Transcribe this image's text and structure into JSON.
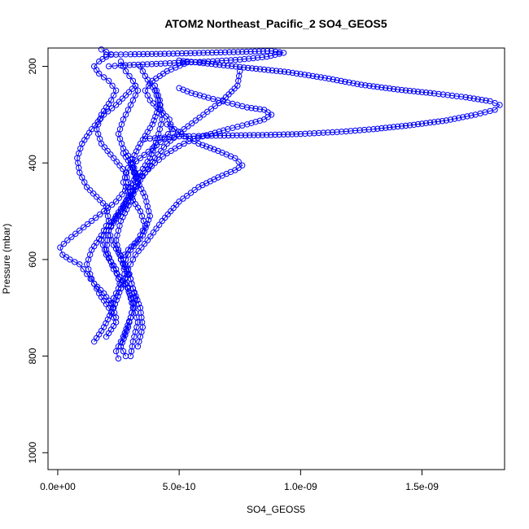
{
  "chart_data": {
    "type": "line",
    "title": "ATOM2 Northeast_Pacific_2 SO4_GEOS5",
    "xlabel": "SO4_GEOS5",
    "ylabel": "Pressure (mbar)",
    "xlim": [
      -4e-11,
      1.84e-09
    ],
    "ylim": [
      1035,
      162
    ],
    "y_reversed": true,
    "x_ticks": [
      0,
      5e-10,
      1e-09,
      1.5e-09
    ],
    "x_tick_labels": [
      "0.0e+00",
      "5.0e-10",
      "1.0e-09",
      "1.5e-09"
    ],
    "y_ticks": [
      200,
      400,
      600,
      800,
      1000
    ],
    "y_tick_labels": [
      "200",
      "400",
      "600",
      "800",
      "1000"
    ],
    "marker": "open-circle",
    "line_style": "line with circle markers",
    "series_color": "#0000ff",
    "grid": false,
    "legend": "none",
    "series": [
      {
        "x": [
          2.8e-10,
          2.6e-10,
          2.9e-10,
          3.1e-10,
          2.9e-10,
          2.3e-10,
          2e-10,
          2.1e-10,
          2.6e-10,
          3e-10,
          2.8e-10,
          2.3e-10,
          1.8e-10,
          1.6e-10,
          1.8e-10,
          2.2e-10,
          2.4e-10,
          2.1e-10,
          1.7e-10,
          1.5e-10,
          1.7e-10,
          2e-10,
          2.2e-10,
          2e-10,
          1.8e-10
        ],
        "y": [
          800,
          780,
          740,
          700,
          660,
          620,
          580,
          540,
          500,
          460,
          420,
          390,
          360,
          330,
          300,
          270,
          250,
          230,
          215,
          200,
          190,
          180,
          175,
          170,
          165
        ]
      },
      {
        "x": [
          2.5e-10,
          2.4e-10,
          2.7e-10,
          3e-10,
          3.2e-10,
          3e-10,
          2.6e-10,
          2.4e-10,
          2.6e-10,
          3e-10,
          3.3e-10,
          3.1e-10,
          2.7e-10,
          2.5e-10,
          2.7e-10,
          3e-10,
          3.3e-10,
          3.1e-10,
          2.8e-10,
          2.6e-10
        ],
        "y": [
          805,
          790,
          760,
          720,
          680,
          640,
          600,
          560,
          520,
          480,
          440,
          400,
          370,
          340,
          310,
          280,
          250,
          230,
          210,
          190
        ]
      },
      {
        "x": [
          3e-10,
          3.1e-10,
          3.3e-10,
          3.1e-10,
          2.8e-10,
          2.7e-10,
          3e-10,
          3.5e-10,
          3.8e-10,
          3.6e-10,
          3.2e-10,
          3e-10,
          3.4e-10,
          3.9e-10,
          4.2e-10,
          4e-10,
          3.6e-10,
          3.4e-10
        ],
        "y": [
          800,
          770,
          730,
          690,
          650,
          610,
          580,
          550,
          510,
          470,
          430,
          400,
          360,
          320,
          280,
          250,
          220,
          200
        ]
      },
      {
        "x": [
          2.3e-10,
          1.9e-10,
          1.5e-10,
          1.2e-10,
          9e-11,
          5e-11,
          2e-11,
          1e-11,
          4e-11,
          9e-11,
          1.4e-10,
          1.9e-10,
          2.4e-10,
          2.9e-10,
          3.4e-10,
          3.8e-10,
          4.1e-10,
          4.3e-10,
          4.2e-10,
          4e-10
        ],
        "y": [
          700,
          670,
          650,
          630,
          610,
          600,
          590,
          575,
          560,
          540,
          520,
          500,
          480,
          450,
          420,
          390,
          350,
          310,
          270,
          240
        ]
      },
      {
        "x": [
          3.3e-10,
          3.5e-10,
          3.4e-10,
          3.1e-10,
          2.9e-10,
          3.2e-10,
          3.7e-10,
          4.3e-10,
          5e-10,
          5.8e-10,
          6.6e-10,
          7.3e-10,
          7.6e-10,
          7.3e-10,
          6.6e-10,
          5.8e-10,
          5.1e-10,
          4.5e-10
        ],
        "y": [
          780,
          740,
          700,
          660,
          620,
          590,
          560,
          520,
          480,
          450,
          430,
          415,
          405,
          390,
          375,
          360,
          340,
          320
        ]
      },
      {
        "x": [
          3.2e-10,
          3.6e-10,
          4e-10,
          4.5e-10,
          5e-10,
          5.6e-10,
          6.3e-10,
          7e-10,
          7.8e-10,
          8.5e-10,
          8.8e-10,
          8.5e-10,
          7.8e-10,
          7e-10,
          6.2e-10,
          5.5e-10,
          5e-10
        ],
        "y": [
          440,
          420,
          400,
          380,
          365,
          350,
          340,
          330,
          320,
          310,
          300,
          290,
          285,
          275,
          265,
          255,
          245
        ]
      },
      {
        "x": [
          3.6e-10,
          4.2e-10,
          5e-10,
          6e-10,
          7.2e-10,
          8.6e-10,
          1e-09,
          1.15e-09,
          1.3e-09,
          1.45e-09,
          1.6e-09,
          1.72e-09,
          1.8e-09,
          1.82e-09,
          1.78e-09,
          1.68e-09,
          1.55e-09,
          1.4e-09,
          1.25e-09,
          1.1e-09,
          9.5e-10,
          8e-10,
          6.5e-10,
          5e-10
        ],
        "y": [
          350,
          348,
          345,
          344,
          343,
          342,
          340,
          336,
          330,
          322,
          312,
          300,
          290,
          280,
          272,
          264,
          256,
          248,
          238,
          224,
          212,
          204,
          196,
          188
        ]
      },
      {
        "x": [
          2.1e-10,
          2.6e-10,
          3.5e-10,
          4.8e-10,
          6.2e-10,
          7.5e-10,
          8.6e-10,
          9.3e-10,
          8.8e-10,
          7.6e-10,
          6e-10,
          4.4e-10,
          3e-10,
          2e-10
        ],
        "y": [
          200,
          198,
          196,
          193,
          190,
          186,
          180,
          172,
          168,
          170,
          172,
          174,
          175,
          176
        ]
      },
      {
        "x": [
          2e-10,
          2.4e-10,
          2.1e-10,
          1.7e-10,
          1.4e-10,
          1.2e-10,
          1.4e-10,
          1.8e-10,
          2.1e-10,
          2e-10,
          1.6e-10,
          1.2e-10,
          9e-11,
          8e-11,
          1e-10,
          1.4e-10,
          1.9e-10,
          2.4e-10,
          2.8e-10,
          3.2e-10
        ],
        "y": [
          760,
          730,
          700,
          670,
          640,
          610,
          580,
          550,
          520,
          490,
          470,
          450,
          420,
          390,
          360,
          330,
          300,
          280,
          260,
          240
        ]
      },
      {
        "x": [
          2.6e-10,
          2.9e-10,
          3.3e-10,
          3.6e-10,
          3.4e-10,
          3e-10,
          2.7e-10,
          2.9e-10,
          3.4e-10,
          3.9e-10,
          4.4e-10,
          4.7e-10,
          4.6e-10,
          4.2e-10,
          3.8e-10,
          3.6e-10,
          3.9e-10,
          4.5e-10,
          5.2e-10
        ],
        "y": [
          600,
          580,
          560,
          530,
          500,
          470,
          440,
          410,
          390,
          370,
          350,
          330,
          310,
          290,
          270,
          250,
          230,
          210,
          195
        ]
      },
      {
        "x": [
          1.5e-10,
          1.9e-10,
          2.3e-10,
          2.6e-10,
          2.4e-10,
          2e-10,
          1.8e-10,
          2.1e-10,
          2.6e-10,
          3e-10,
          3.3e-10,
          3.1e-10,
          2.7e-10
        ],
        "y": [
          770,
          740,
          700,
          660,
          620,
          590,
          560,
          530,
          500,
          470,
          440,
          410,
          380
        ]
      },
      {
        "x": [
          2.4e-10,
          2.2e-10,
          2.5e-10,
          2.9e-10,
          2.7e-10,
          2.3e-10,
          2.1e-10,
          2.4e-10,
          2.8e-10,
          3.2e-10,
          3.6e-10,
          4e-10,
          4.5e-10,
          5.2e-10,
          6e-10,
          6.8e-10,
          7.4e-10,
          7.5e-10
        ],
        "y": [
          720,
          690,
          660,
          630,
          600,
          570,
          540,
          510,
          480,
          450,
          420,
          390,
          360,
          330,
          300,
          270,
          240,
          210
        ]
      }
    ]
  }
}
